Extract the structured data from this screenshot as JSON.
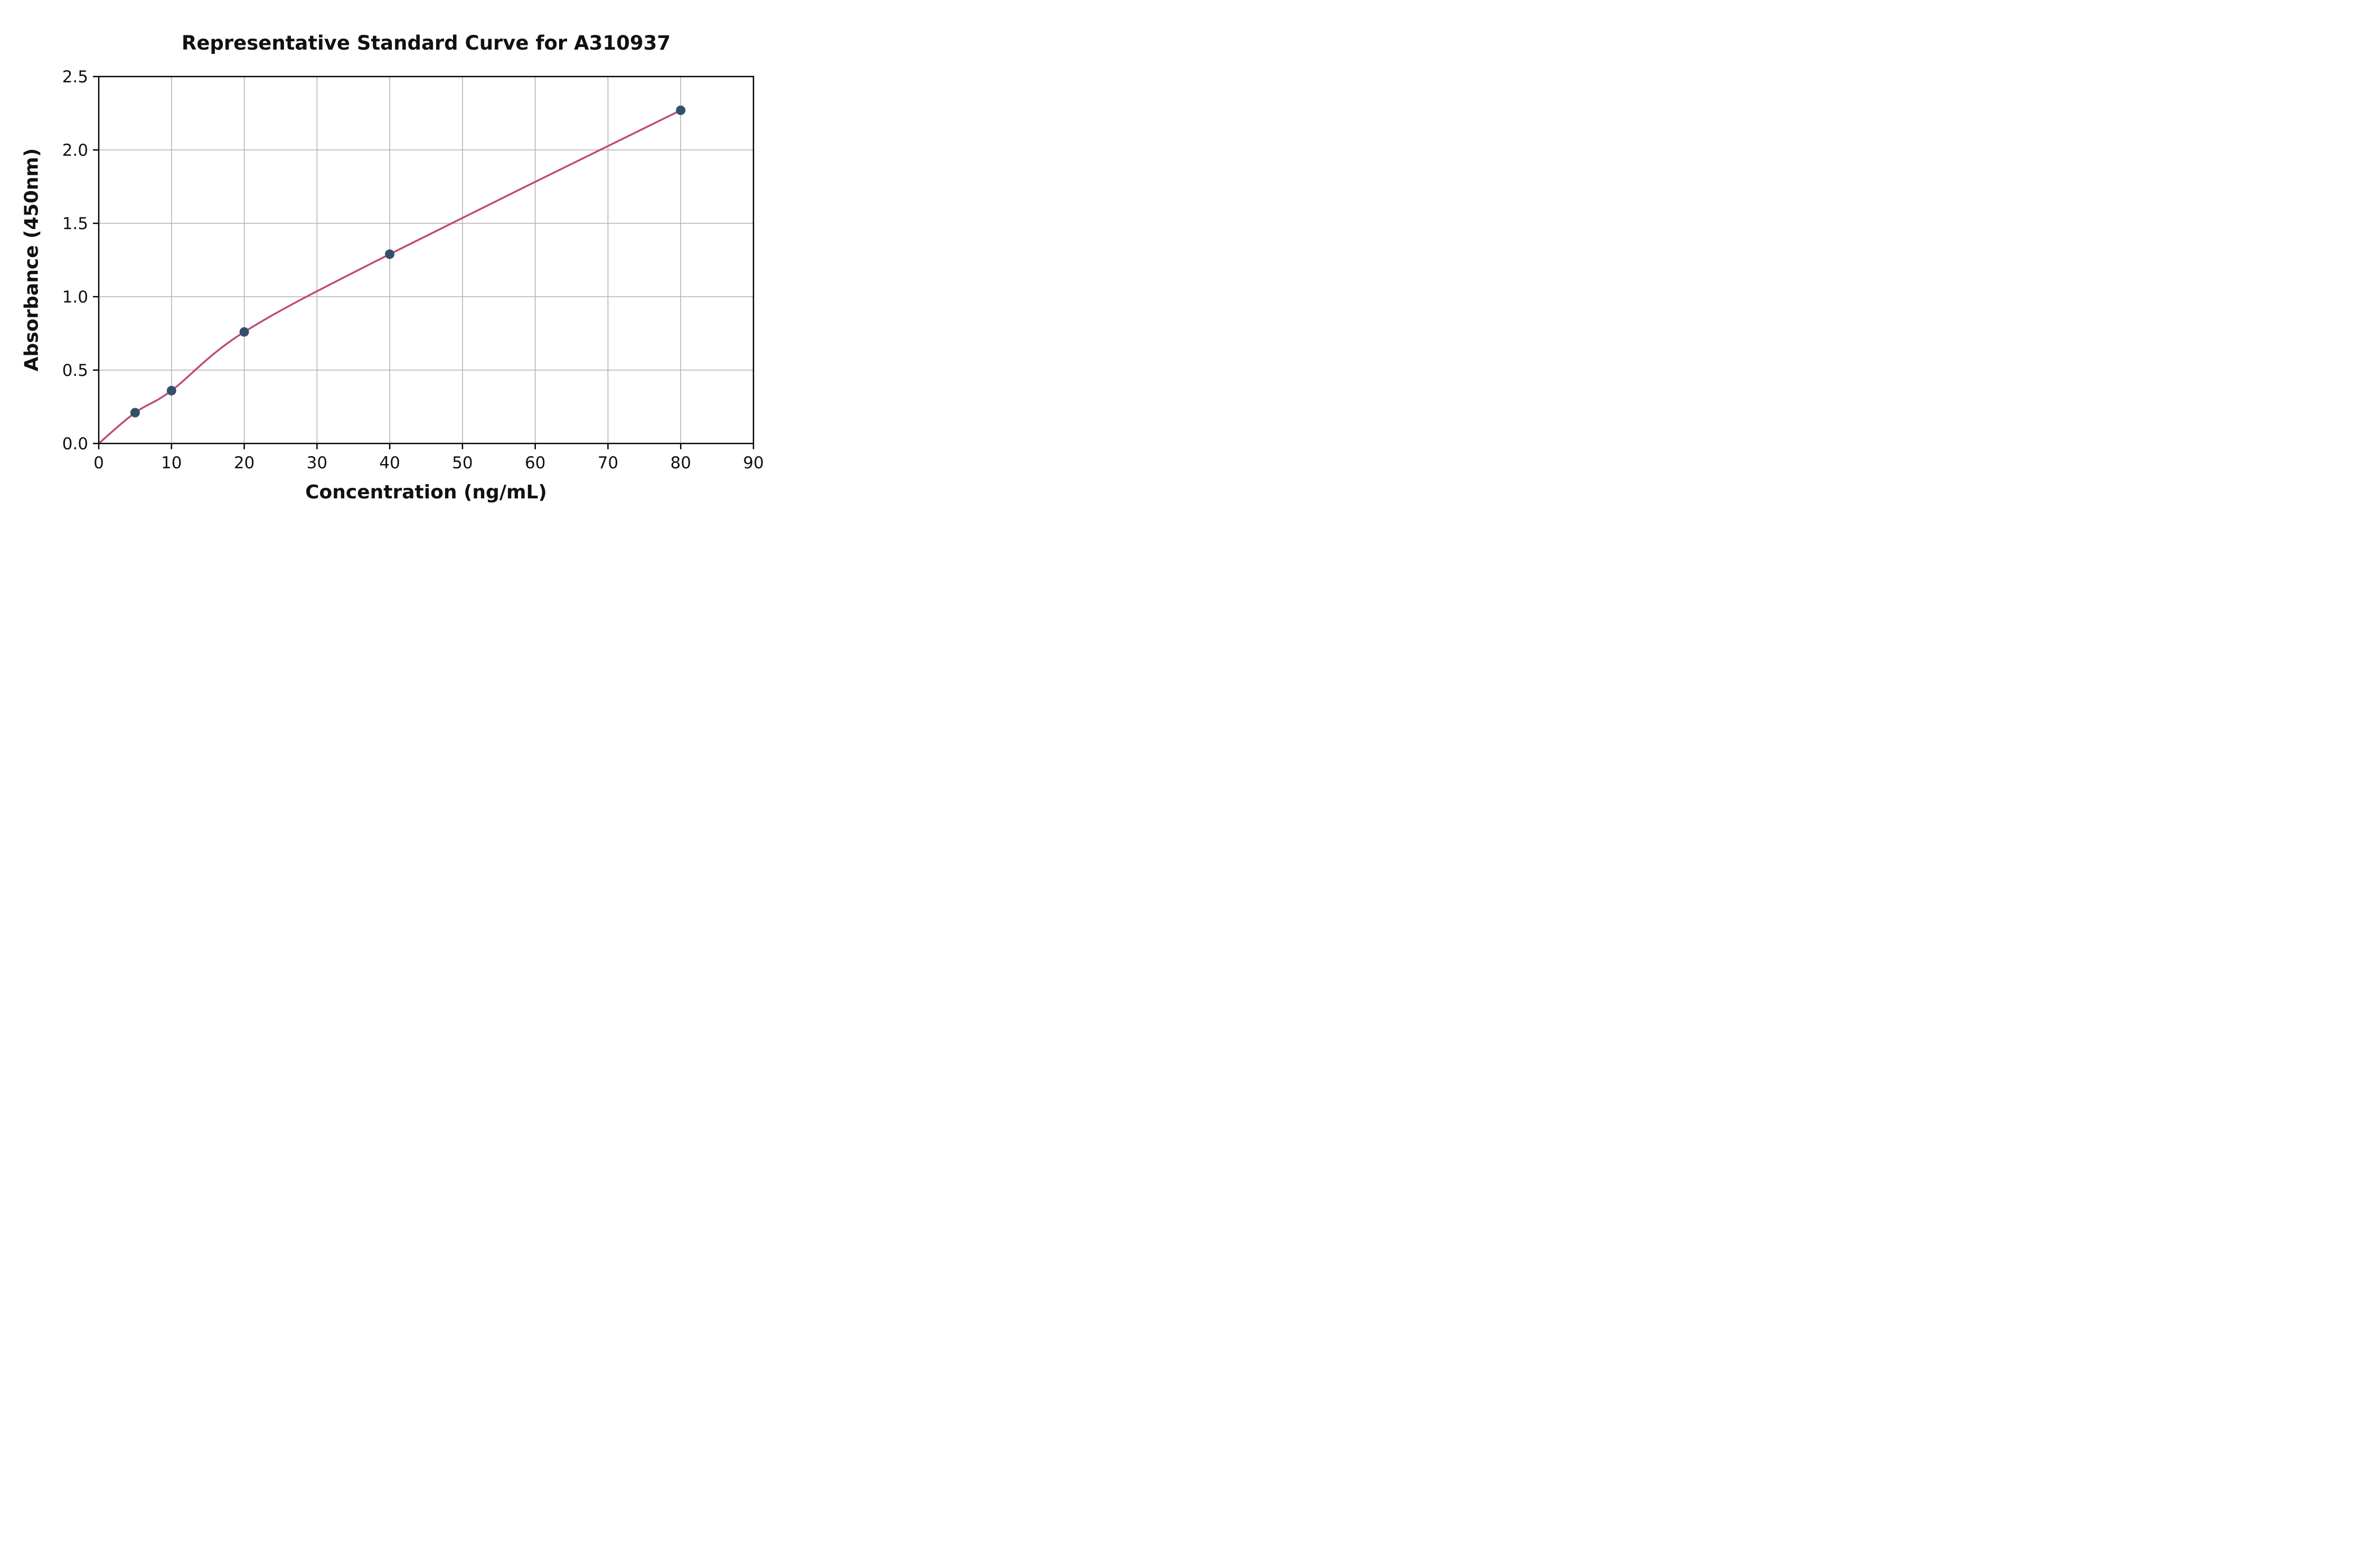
{
  "chart_data": {
    "type": "scatter",
    "title": "Representative Standard Curve for A310937",
    "xlabel": "Concentration (ng/mL)",
    "ylabel": "Absorbance (450nm)",
    "x": [
      5,
      10,
      20,
      40,
      80
    ],
    "y": [
      0.21,
      0.36,
      0.76,
      1.29,
      2.27
    ],
    "curve_anchor": [
      0,
      0
    ],
    "xlim": [
      0,
      90
    ],
    "ylim": [
      0,
      2.5
    ],
    "xticks": [
      0,
      10,
      20,
      30,
      40,
      50,
      60,
      70,
      80,
      90
    ],
    "xtick_labels": [
      "0",
      "10",
      "20",
      "30",
      "40",
      "50",
      "60",
      "70",
      "80",
      "90"
    ],
    "yticks": [
      0,
      0.5,
      1.0,
      1.5,
      2.0,
      2.5
    ],
    "ytick_labels": [
      "0.0",
      "0.5",
      "1.0",
      "1.5",
      "2.0",
      "2.5"
    ],
    "grid": true,
    "legend": "none",
    "colors": {
      "curve": "#c04a72",
      "points": "#33506b",
      "grid": "#b0b0b0",
      "axis": "#000000",
      "text": "#111111",
      "background": "#ffffff"
    }
  }
}
